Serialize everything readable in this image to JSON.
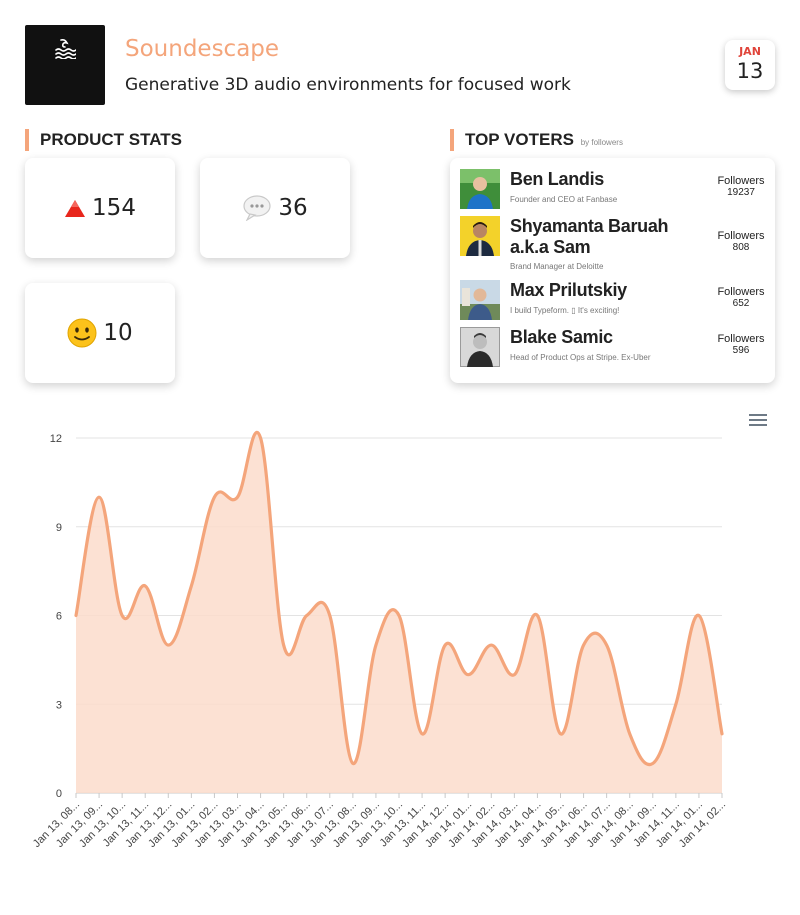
{
  "product": {
    "name": "Soundescape",
    "tagline": "Generative 3D audio environments for focused work",
    "logo_icon": "waves-icon"
  },
  "date": {
    "month": "JAN",
    "day": "13"
  },
  "stats": {
    "title": "PRODUCT STATS",
    "upvotes": {
      "icon": "red-triangle-icon",
      "value": "154"
    },
    "comments": {
      "icon": "speech-bubble-icon",
      "value": "36"
    },
    "reactions": {
      "icon": "smiley-icon",
      "value": "10"
    }
  },
  "voters": {
    "title": "TOP VOTERS",
    "subtitle": "by followers",
    "items": [
      {
        "name": "Ben Landis",
        "headline": "Founder and CEO at Fanbase",
        "followers_label": "Followers",
        "followers": "19237"
      },
      {
        "name": "Shyamanta Baruah a.k.a Sam",
        "headline": "Brand Manager at Deloitte",
        "followers_label": "Followers",
        "followers": "808"
      },
      {
        "name": "Max Prilutskiy",
        "headline": "I build Typeform. ▯ It's exciting!",
        "followers_label": "Followers",
        "followers": "652"
      },
      {
        "name": "Blake Samic",
        "headline": "Head of Product Ops at Stripe. Ex-Uber",
        "followers_label": "Followers",
        "followers": "596"
      }
    ]
  },
  "chart_data": {
    "type": "area",
    "categories": [
      "Jan 13, 08...",
      "Jan 13, 09...",
      "Jan 13, 10...",
      "Jan 13, 11...",
      "Jan 13, 12...",
      "Jan 13, 01...",
      "Jan 13, 02...",
      "Jan 13, 03...",
      "Jan 13, 04...",
      "Jan 13, 05...",
      "Jan 13, 06...",
      "Jan 13, 07...",
      "Jan 13, 08...",
      "Jan 13, 09...",
      "Jan 13, 10...",
      "Jan 13, 11...",
      "Jan 14, 12...",
      "Jan 14, 01...",
      "Jan 14, 02...",
      "Jan 14, 03...",
      "Jan 14, 04...",
      "Jan 14, 05...",
      "Jan 14, 06...",
      "Jan 14, 07...",
      "Jan 14, 08...",
      "Jan 14, 09...",
      "Jan 14, 11...",
      "Jan 14, 01...",
      "Jan 14, 02..."
    ],
    "series": [
      {
        "values": [
          6,
          10,
          6,
          7,
          5,
          7,
          10,
          10,
          12,
          5,
          6,
          6,
          1,
          5,
          6,
          2,
          5,
          4,
          5,
          4,
          6,
          2,
          5,
          5,
          2,
          1,
          3,
          6,
          2
        ]
      }
    ],
    "ylim": [
      0,
      12
    ],
    "yticks": [
      0,
      3,
      6,
      9,
      12
    ],
    "grid": true,
    "color": "#f4a57b",
    "fill_color": "#fcdccb"
  },
  "chart_menu_icon": "hamburger-menu-icon"
}
